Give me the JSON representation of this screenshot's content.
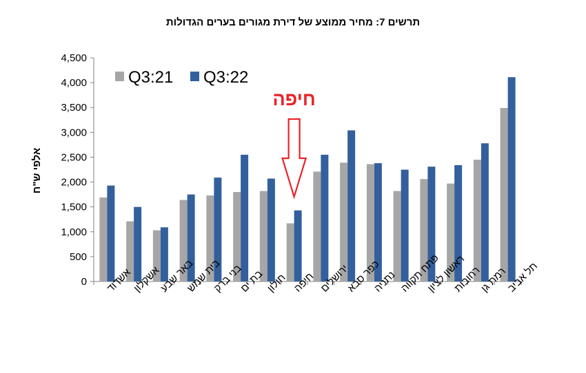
{
  "chart_data": {
    "type": "bar",
    "title": "תרשים 7: מחיר ממוצע של דירת מגורים בערים הגדולות",
    "ylabel": "אלפי ש\"ח",
    "xlabel": "",
    "ylim": [
      0,
      4500
    ],
    "yticks": [
      0,
      500,
      1000,
      1500,
      2000,
      2500,
      3000,
      3500,
      4000,
      4500
    ],
    "ytick_labels": [
      "0",
      "500",
      "1,000",
      "1,500",
      "2,000",
      "2,500",
      "3,000",
      "3,500",
      "4,000",
      "4,500"
    ],
    "categories": [
      "אשדוד",
      "אשקלון",
      "באר שבע",
      "בית שמש",
      "בני ברק",
      "בת ים",
      "חולון",
      "חיפה",
      "ירושלים",
      "כפר סבא",
      "נתניה",
      "פתח תקווה",
      "ראשון לציון",
      "רחובות",
      "רמת גן",
      "תל אביב"
    ],
    "series": [
      {
        "name": "Q3:21",
        "color": "#a6a6a6",
        "values": [
          1690,
          1210,
          1030,
          1640,
          1730,
          1800,
          1820,
          1170,
          2210,
          2390,
          2360,
          1820,
          2060,
          1970,
          2450,
          3490
        ]
      },
      {
        "name": "Q3:22",
        "color": "#33609c",
        "values": [
          1930,
          1500,
          1090,
          1750,
          2090,
          2550,
          2070,
          1430,
          2550,
          3040,
          2380,
          2250,
          2310,
          2340,
          2780,
          4110
        ]
      }
    ],
    "legend_position": "top-left",
    "grid": false,
    "annotation": {
      "text": "חיפה",
      "category": "חיפה",
      "color": "#e8232a",
      "shape": "down-arrow"
    }
  }
}
